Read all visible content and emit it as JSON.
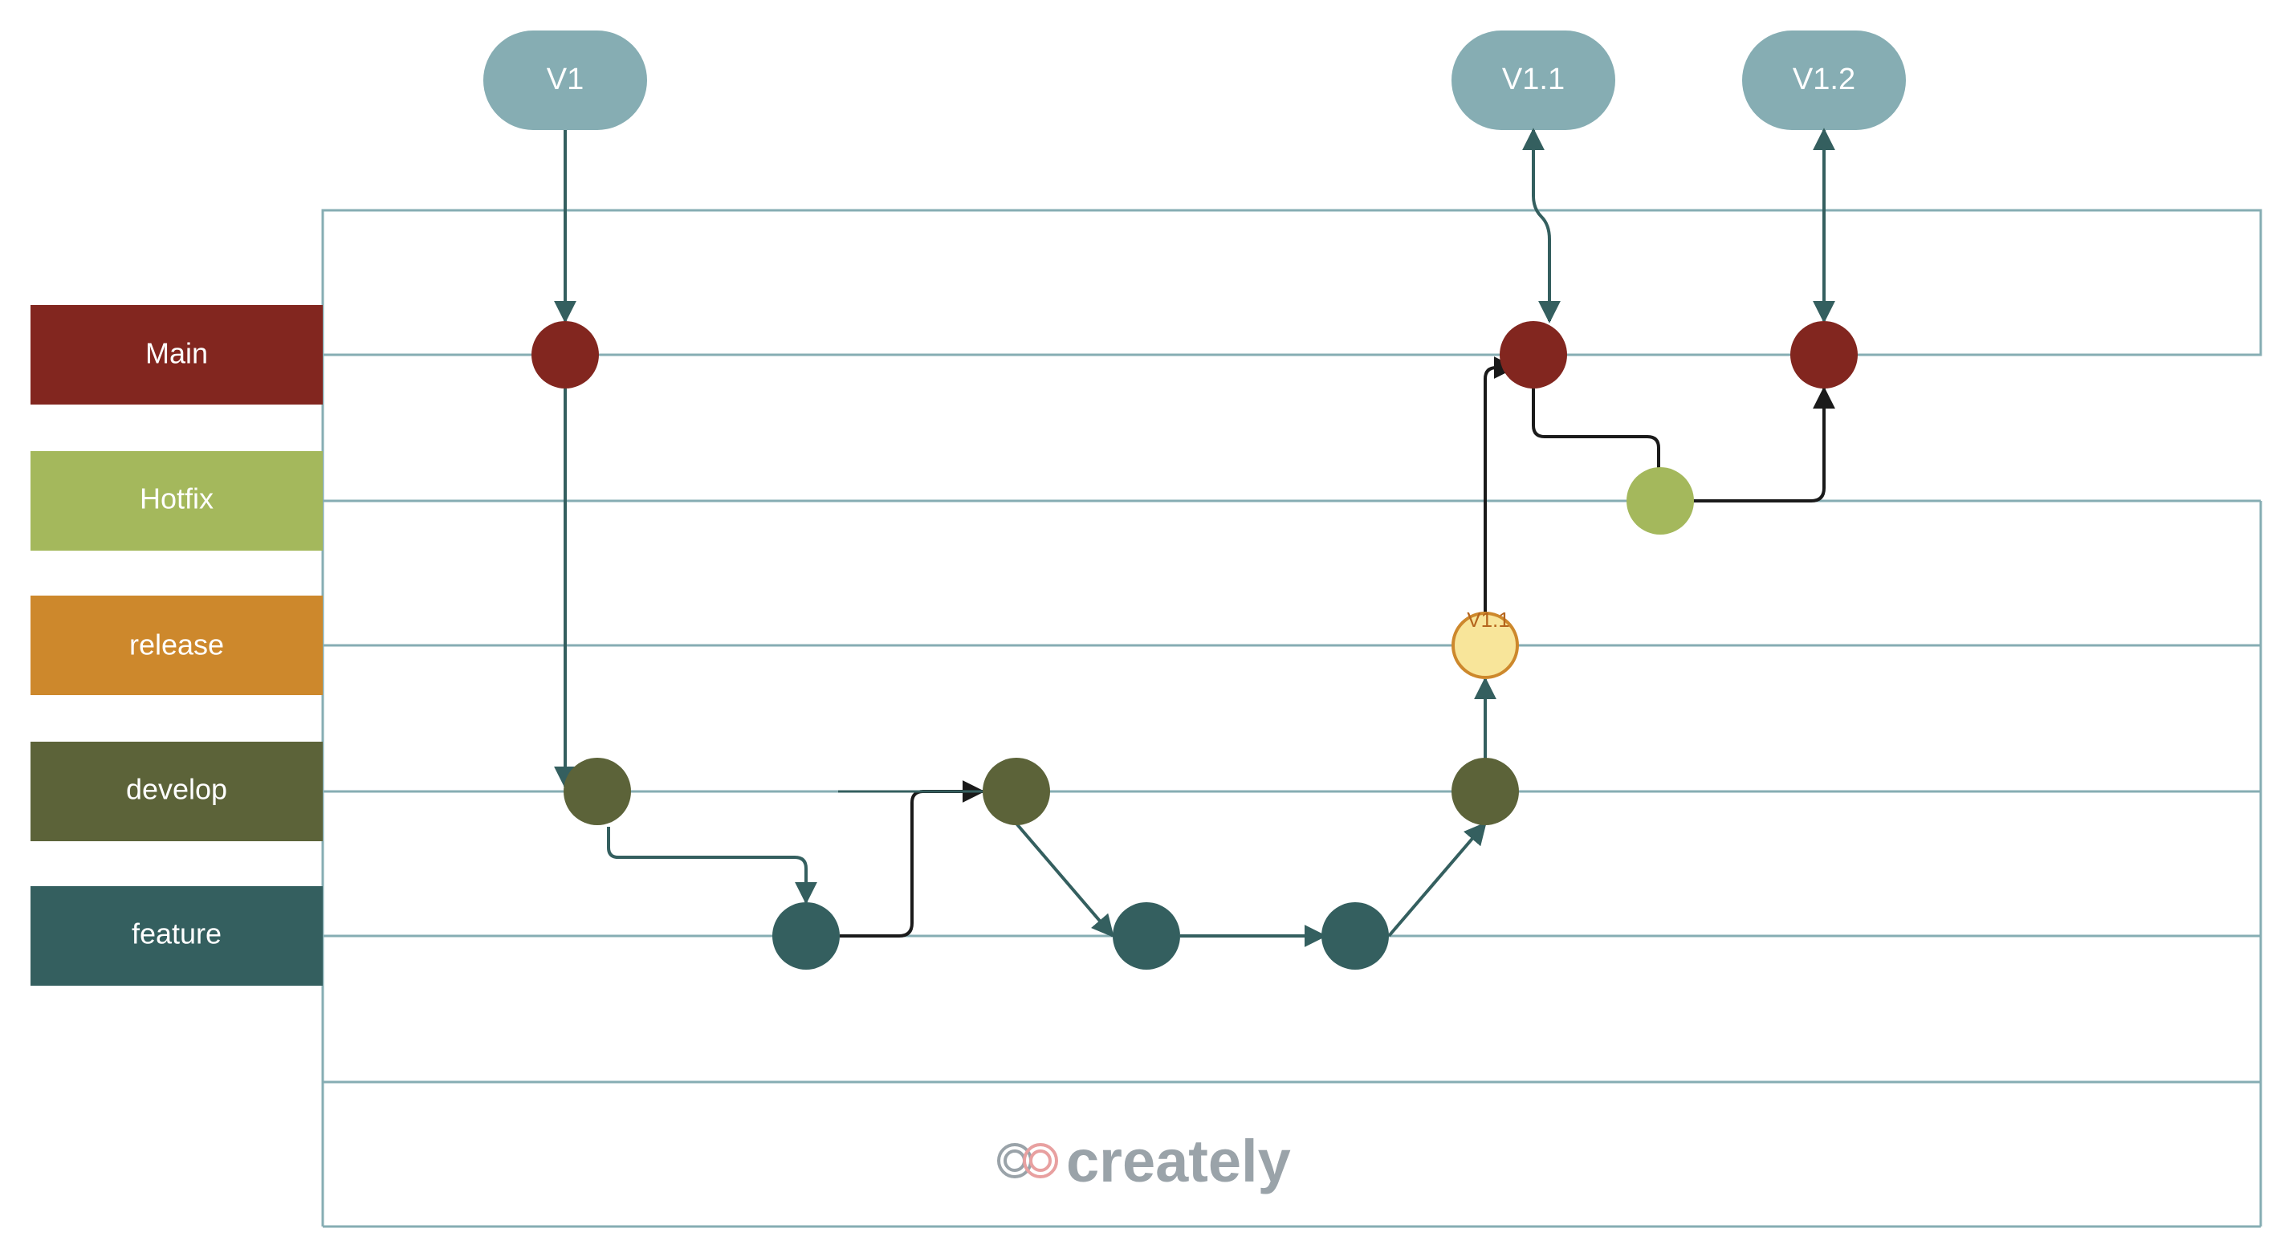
{
  "lanes": [
    {
      "id": "main",
      "label": "Main",
      "color": "#82261f"
    },
    {
      "id": "hotfix",
      "label": "Hotfix",
      "color": "#a4b85c"
    },
    {
      "id": "release",
      "label": "release",
      "color": "#cd882c"
    },
    {
      "id": "develop",
      "label": "develop",
      "color": "#5c6339"
    },
    {
      "id": "feature",
      "label": "feature",
      "color": "#345f5f"
    }
  ],
  "tags": [
    {
      "label": "V1",
      "color": "#86adb3"
    },
    {
      "label": "V1.1",
      "color": "#86adb3"
    },
    {
      "label": "V1.2",
      "color": "#86adb3"
    }
  ],
  "release_node": {
    "label": "V1.1",
    "fill": "#f8e59a",
    "stroke": "#cd882c"
  },
  "colors": {
    "grid": "#86adb3",
    "connector_teal": "#345f5f",
    "connector_dark": "#1a1a1a"
  },
  "branding": {
    "name": "creately"
  }
}
